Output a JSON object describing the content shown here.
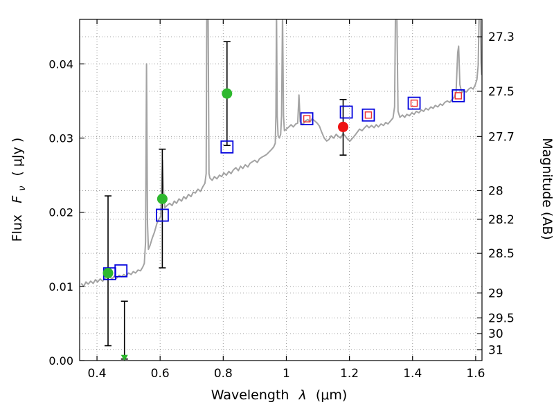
{
  "chart_data": {
    "type": "line",
    "title": "",
    "xlabel": {
      "prefix": "Wavelength",
      "symbol": "λ",
      "unit": "(μm)"
    },
    "ylabel": {
      "prefix": "Flux",
      "symbol": "F",
      "subscript": "ν",
      "unit": "( μJy )"
    },
    "y2label": "Magnitude (AB)",
    "xlim": [
      0.345,
      1.62
    ],
    "ylim": [
      0,
      0.046
    ],
    "grid": true,
    "x_ticks": [
      {
        "value": 0.4,
        "label": "0.4"
      },
      {
        "value": 0.6,
        "label": "0.6"
      },
      {
        "value": 0.8,
        "label": "0.8"
      },
      {
        "value": 1.0,
        "label": "1"
      },
      {
        "value": 1.2,
        "label": "1.2"
      },
      {
        "value": 1.4,
        "label": "1.4"
      },
      {
        "value": 1.6,
        "label": "1.6"
      }
    ],
    "y_ticks": [
      {
        "value": 0.0,
        "label": "0.00"
      },
      {
        "value": 0.01,
        "label": "0.01"
      },
      {
        "value": 0.02,
        "label": "0.02"
      },
      {
        "value": 0.03,
        "label": "0.03"
      },
      {
        "value": 0.04,
        "label": "0.04"
      }
    ],
    "y2_ticks": [
      {
        "mag": 27.3,
        "label": "27.3"
      },
      {
        "mag": 27.5,
        "label": "27.5"
      },
      {
        "mag": 27.7,
        "label": "27.7"
      },
      {
        "mag": 28.0,
        "label": "28"
      },
      {
        "mag": 28.2,
        "label": "28.2"
      },
      {
        "mag": 28.5,
        "label": "28.5"
      },
      {
        "mag": 29.0,
        "label": "29"
      },
      {
        "mag": 29.5,
        "label": "29.5"
      },
      {
        "mag": 30.0,
        "label": "30"
      },
      {
        "mag": 31.0,
        "label": "31"
      }
    ],
    "colors": {
      "frame": "#000000",
      "grid": "#999999",
      "spectrum": "#a3a3a3",
      "errorbar": "#000000",
      "observed_green": "#2eb82e",
      "observed_red": "#ee1111",
      "model_blue": "#0202dd",
      "inner_red": "#ee3333"
    },
    "series": {
      "spectrum": {
        "name": "model-spectrum",
        "points": [
          [
            0.35,
            0.0104
          ],
          [
            0.358,
            0.01
          ],
          [
            0.365,
            0.0106
          ],
          [
            0.372,
            0.0103
          ],
          [
            0.38,
            0.0107
          ],
          [
            0.388,
            0.0104
          ],
          [
            0.395,
            0.0109
          ],
          [
            0.402,
            0.0106
          ],
          [
            0.41,
            0.011
          ],
          [
            0.418,
            0.0107
          ],
          [
            0.425,
            0.0111
          ],
          [
            0.432,
            0.0109
          ],
          [
            0.44,
            0.0113
          ],
          [
            0.448,
            0.011
          ],
          [
            0.455,
            0.0114
          ],
          [
            0.462,
            0.0111
          ],
          [
            0.47,
            0.0115
          ],
          [
            0.478,
            0.0113
          ],
          [
            0.485,
            0.0116
          ],
          [
            0.492,
            0.0114
          ],
          [
            0.5,
            0.0118
          ],
          [
            0.508,
            0.0116
          ],
          [
            0.515,
            0.012
          ],
          [
            0.522,
            0.0118
          ],
          [
            0.53,
            0.0122
          ],
          [
            0.538,
            0.0121
          ],
          [
            0.545,
            0.0126
          ],
          [
            0.55,
            0.0131
          ],
          [
            0.554,
            0.016
          ],
          [
            0.557,
            0.04
          ],
          [
            0.56,
            0.0185
          ],
          [
            0.563,
            0.015
          ],
          [
            0.568,
            0.0155
          ],
          [
            0.575,
            0.0165
          ],
          [
            0.582,
            0.0173
          ],
          [
            0.59,
            0.0185
          ],
          [
            0.597,
            0.0191
          ],
          [
            0.602,
            0.0194
          ],
          [
            0.606,
            0.0248
          ],
          [
            0.608,
            0.027
          ],
          [
            0.611,
            0.0228
          ],
          [
            0.615,
            0.0206
          ],
          [
            0.622,
            0.0209
          ],
          [
            0.63,
            0.0212
          ],
          [
            0.638,
            0.0209
          ],
          [
            0.645,
            0.0215
          ],
          [
            0.652,
            0.0212
          ],
          [
            0.66,
            0.0218
          ],
          [
            0.668,
            0.0215
          ],
          [
            0.675,
            0.0221
          ],
          [
            0.682,
            0.0218
          ],
          [
            0.69,
            0.0224
          ],
          [
            0.698,
            0.0221
          ],
          [
            0.705,
            0.0227
          ],
          [
            0.712,
            0.0226
          ],
          [
            0.72,
            0.0231
          ],
          [
            0.728,
            0.0228
          ],
          [
            0.735,
            0.0234
          ],
          [
            0.742,
            0.0239
          ],
          [
            0.746,
            0.0252
          ],
          [
            0.748,
            0.047
          ],
          [
            0.752,
            0.047
          ],
          [
            0.755,
            0.0252
          ],
          [
            0.758,
            0.0246
          ],
          [
            0.765,
            0.0243
          ],
          [
            0.772,
            0.0248
          ],
          [
            0.78,
            0.0245
          ],
          [
            0.788,
            0.025
          ],
          [
            0.795,
            0.0248
          ],
          [
            0.802,
            0.0253
          ],
          [
            0.81,
            0.025
          ],
          [
            0.818,
            0.0255
          ],
          [
            0.825,
            0.0252
          ],
          [
            0.832,
            0.0257
          ],
          [
            0.84,
            0.026
          ],
          [
            0.848,
            0.0256
          ],
          [
            0.855,
            0.0262
          ],
          [
            0.862,
            0.0259
          ],
          [
            0.87,
            0.0264
          ],
          [
            0.878,
            0.0261
          ],
          [
            0.885,
            0.0266
          ],
          [
            0.892,
            0.0268
          ],
          [
            0.9,
            0.027
          ],
          [
            0.908,
            0.0267
          ],
          [
            0.915,
            0.0272
          ],
          [
            0.922,
            0.0274
          ],
          [
            0.93,
            0.0276
          ],
          [
            0.938,
            0.0278
          ],
          [
            0.945,
            0.0281
          ],
          [
            0.952,
            0.0284
          ],
          [
            0.96,
            0.0288
          ],
          [
            0.965,
            0.0293
          ],
          [
            0.967,
            0.033
          ],
          [
            0.969,
            0.047
          ],
          [
            0.971,
            0.033
          ],
          [
            0.974,
            0.0303
          ],
          [
            0.978,
            0.03
          ],
          [
            0.982,
            0.0305
          ],
          [
            0.985,
            0.033
          ],
          [
            0.988,
            0.047
          ],
          [
            0.991,
            0.033
          ],
          [
            0.994,
            0.031
          ],
          [
            1.0,
            0.0312
          ],
          [
            1.008,
            0.0315
          ],
          [
            1.015,
            0.0318
          ],
          [
            1.022,
            0.0315
          ],
          [
            1.03,
            0.0319
          ],
          [
            1.036,
            0.032
          ],
          [
            1.04,
            0.0358
          ],
          [
            1.044,
            0.0322
          ],
          [
            1.052,
            0.0318
          ],
          [
            1.06,
            0.0323
          ],
          [
            1.068,
            0.0325
          ],
          [
            1.075,
            0.0322
          ],
          [
            1.082,
            0.0326
          ],
          [
            1.09,
            0.0323
          ],
          [
            1.098,
            0.032
          ],
          [
            1.105,
            0.0316
          ],
          [
            1.112,
            0.0308
          ],
          [
            1.12,
            0.03
          ],
          [
            1.128,
            0.0296
          ],
          [
            1.135,
            0.0298
          ],
          [
            1.142,
            0.0303
          ],
          [
            1.15,
            0.03
          ],
          [
            1.158,
            0.0305
          ],
          [
            1.165,
            0.0302
          ],
          [
            1.172,
            0.03
          ],
          [
            1.18,
            0.0306
          ],
          [
            1.188,
            0.0302
          ],
          [
            1.195,
            0.0298
          ],
          [
            1.202,
            0.0296
          ],
          [
            1.21,
            0.03
          ],
          [
            1.218,
            0.0304
          ],
          [
            1.225,
            0.0308
          ],
          [
            1.232,
            0.0312
          ],
          [
            1.24,
            0.031
          ],
          [
            1.248,
            0.0314
          ],
          [
            1.255,
            0.0317
          ],
          [
            1.262,
            0.0314
          ],
          [
            1.27,
            0.0317
          ],
          [
            1.278,
            0.0314
          ],
          [
            1.285,
            0.0318
          ],
          [
            1.292,
            0.0315
          ],
          [
            1.3,
            0.0319
          ],
          [
            1.308,
            0.0317
          ],
          [
            1.315,
            0.0321
          ],
          [
            1.322,
            0.0319
          ],
          [
            1.33,
            0.0323
          ],
          [
            1.338,
            0.0327
          ],
          [
            1.343,
            0.0342
          ],
          [
            1.346,
            0.047
          ],
          [
            1.35,
            0.047
          ],
          [
            1.354,
            0.0336
          ],
          [
            1.36,
            0.0328
          ],
          [
            1.368,
            0.0331
          ],
          [
            1.375,
            0.0328
          ],
          [
            1.382,
            0.0332
          ],
          [
            1.39,
            0.033
          ],
          [
            1.398,
            0.0334
          ],
          [
            1.405,
            0.0332
          ],
          [
            1.412,
            0.0336
          ],
          [
            1.42,
            0.0334
          ],
          [
            1.428,
            0.0338
          ],
          [
            1.435,
            0.0336
          ],
          [
            1.442,
            0.034
          ],
          [
            1.45,
            0.0338
          ],
          [
            1.458,
            0.0342
          ],
          [
            1.465,
            0.034
          ],
          [
            1.472,
            0.0344
          ],
          [
            1.48,
            0.0342
          ],
          [
            1.488,
            0.0346
          ],
          [
            1.495,
            0.0344
          ],
          [
            1.502,
            0.0348
          ],
          [
            1.51,
            0.035
          ],
          [
            1.518,
            0.0348
          ],
          [
            1.525,
            0.0352
          ],
          [
            1.532,
            0.0355
          ],
          [
            1.538,
            0.0362
          ],
          [
            1.543,
            0.0415
          ],
          [
            1.546,
            0.0424
          ],
          [
            1.55,
            0.0372
          ],
          [
            1.556,
            0.0361
          ],
          [
            1.562,
            0.0364
          ],
          [
            1.57,
            0.0362
          ],
          [
            1.578,
            0.0366
          ],
          [
            1.585,
            0.0368
          ],
          [
            1.592,
            0.0366
          ],
          [
            1.598,
            0.0371
          ],
          [
            1.604,
            0.0379
          ],
          [
            1.608,
            0.0398
          ],
          [
            1.611,
            0.047
          ],
          [
            1.615,
            0.047
          ],
          [
            1.617,
            0.0402
          ],
          [
            1.619,
            0.0386
          ],
          [
            1.62,
            0.0392
          ]
        ]
      },
      "observed": {
        "name": "observed-photometry",
        "points": [
          {
            "x": 0.435,
            "y": 0.0118,
            "ylo": 0.002,
            "yhi": 0.0222,
            "color": "#2eb82e",
            "marker": "circle"
          },
          {
            "x": 0.487,
            "y": 0.0004,
            "ylo": 0.0002,
            "yhi": 0.008,
            "color": "#2eb82e",
            "marker": "triangle"
          },
          {
            "x": 0.607,
            "y": 0.0218,
            "ylo": 0.0125,
            "yhi": 0.0285,
            "color": "#2eb82e",
            "marker": "circle"
          },
          {
            "x": 0.812,
            "y": 0.036,
            "ylo": 0.029,
            "yhi": 0.043,
            "color": "#2eb82e",
            "marker": "circle"
          },
          {
            "x": 1.18,
            "y": 0.0315,
            "ylo": 0.0277,
            "yhi": 0.0352,
            "color": "#ee1111",
            "marker": "circle"
          }
        ]
      },
      "model_photometry": {
        "name": "model-photometry",
        "points": [
          {
            "x": 0.44,
            "y": 0.0117,
            "inner": false
          },
          {
            "x": 0.476,
            "y": 0.0121,
            "inner": false
          },
          {
            "x": 0.607,
            "y": 0.0196,
            "inner": false
          },
          {
            "x": 0.812,
            "y": 0.0288,
            "inner": false
          },
          {
            "x": 1.065,
            "y": 0.0326,
            "inner": true
          },
          {
            "x": 1.19,
            "y": 0.0335,
            "inner": false
          },
          {
            "x": 1.26,
            "y": 0.0331,
            "inner": true
          },
          {
            "x": 1.405,
            "y": 0.0347,
            "inner": true
          },
          {
            "x": 1.545,
            "y": 0.0357,
            "inner": true
          }
        ]
      }
    }
  }
}
